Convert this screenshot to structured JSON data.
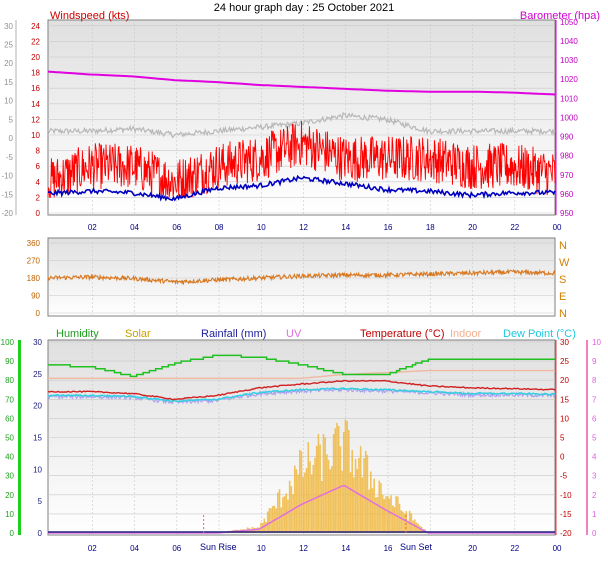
{
  "title": "24 hour graph day : 25 October 2021",
  "panel1": {
    "left_label": "Windspeed (kts)",
    "right_label": "Barometer (hpa)",
    "outer_left_ticks": [
      "30",
      "25",
      "20",
      "15",
      "10",
      "5",
      "0",
      "-5",
      "-10",
      "-15",
      "-20"
    ],
    "left_ticks": [
      "24",
      "22",
      "20",
      "18",
      "16",
      "14",
      "12",
      "10",
      "8",
      "6",
      "4",
      "2",
      "0"
    ],
    "right_ticks": [
      "1050",
      "1040",
      "1030",
      "1020",
      "1010",
      "1000",
      "990",
      "980",
      "970",
      "960",
      "950"
    ]
  },
  "panel2": {
    "left_ticks": [
      "360",
      "270",
      "180",
      "90",
      "0"
    ],
    "right_ticks": [
      "N",
      "W",
      "S",
      "E",
      "N"
    ]
  },
  "panel3": {
    "legend": [
      "Humidity",
      "Solar",
      "Rainfall (mm)",
      "UV",
      "Temperature (°C)",
      "Indoor",
      "Dew Point (°C)"
    ],
    "outer_left_ticks": [
      "100",
      "90",
      "80",
      "70",
      "60",
      "50",
      "40",
      "30",
      "20",
      "10",
      "0"
    ],
    "left_ticks": [
      "30",
      "25",
      "20",
      "15",
      "10",
      "5",
      "0"
    ],
    "right_ticks": [
      "30",
      "25",
      "20",
      "15",
      "10",
      "5",
      "0",
      "-5",
      "-10",
      "-15",
      "-20"
    ],
    "outer_right_ticks": [
      "10",
      "9",
      "8",
      "7",
      "6",
      "5",
      "4",
      "3",
      "2",
      "1",
      "0"
    ],
    "sun_rise": "Sun Rise",
    "sun_set": "Sun Set"
  },
  "x_ticks": [
    "02",
    "04",
    "06",
    "08",
    "10",
    "12",
    "14",
    "16",
    "18",
    "20",
    "22",
    "00"
  ],
  "colors": {
    "windspeed": "#ff0000",
    "avg_wind": "#0000c0",
    "barometer": "#e000e0",
    "gust_grey": "#b8b8b8",
    "direction": "#d87820",
    "humidity": "#20c020",
    "solar": "#f0b840",
    "rainfall": "#202080",
    "uv": "#e070e0",
    "temperature": "#d02020",
    "indoor": "#f0b8a0",
    "dewpoint": "#30d0e0",
    "dewpoint_lilac": "#b0a0f0"
  },
  "chart_data": [
    {
      "type": "line",
      "title": "24 hour graph day : 25 October 2021",
      "x": [
        "00",
        "02",
        "04",
        "06",
        "08",
        "10",
        "12",
        "14",
        "16",
        "18",
        "20",
        "22",
        "00"
      ],
      "series": [
        {
          "name": "Windspeed (kts)",
          "axis": "left",
          "values": [
            4,
            6,
            6,
            4,
            6,
            7,
            9,
            7,
            7,
            7,
            6,
            6,
            5
          ]
        },
        {
          "name": "Barometer (hpa)",
          "axis": "right",
          "values": [
            1024,
            1022.5,
            1021.5,
            1019.5,
            1018.5,
            1017,
            1016,
            1015,
            1014,
            1013.5,
            1013.5,
            1013,
            1012
          ]
        }
      ],
      "avg_wind": [
        2.5,
        2.8,
        2.6,
        1.8,
        3.2,
        3.5,
        4.5,
        3.8,
        3.0,
        2.8,
        2.3,
        2.6,
        2.6
      ],
      "gust_trace": [
        10.5,
        10.5,
        10.8,
        10,
        10.5,
        11,
        11.5,
        12.5,
        12,
        10.5,
        10.5,
        10.5,
        10.5
      ],
      "ylim_left": [
        0,
        24
      ],
      "ylim_right": [
        950,
        1050
      ],
      "xlabel": "",
      "ylabel": "Windspeed (kts)",
      "ylabel_right": "Barometer (hpa)"
    },
    {
      "type": "line",
      "x": [
        "00",
        "02",
        "04",
        "06",
        "08",
        "10",
        "12",
        "14",
        "16",
        "18",
        "20",
        "22",
        "00"
      ],
      "series": [
        {
          "name": "Wind direction",
          "values": [
            180,
            185,
            178,
            160,
            170,
            180,
            190,
            195,
            195,
            200,
            205,
            210,
            205
          ]
        }
      ],
      "ylim": [
        0,
        360
      ],
      "y_tick_labels_right": [
        "N",
        "W",
        "S",
        "E",
        "N"
      ]
    },
    {
      "type": "line",
      "x": [
        "00",
        "02",
        "04",
        "06",
        "08",
        "10",
        "12",
        "14",
        "16",
        "18",
        "20",
        "22",
        "00"
      ],
      "series": [
        {
          "name": "Humidity",
          "axis": "outer_left",
          "values": [
            88,
            87,
            82,
            89,
            93,
            92,
            88,
            83,
            83,
            91,
            91,
            91,
            91
          ]
        },
        {
          "name": "Temperature (°C)",
          "axis": "left",
          "values": [
            17,
            17,
            16.5,
            15,
            16,
            18,
            19,
            19.8,
            19.8,
            18.5,
            18,
            17.8,
            17.5
          ]
        },
        {
          "name": "Indoor",
          "axis": "left",
          "values": [
            20.5,
            20.5,
            20.5,
            20.5,
            20.5,
            20.5,
            20.5,
            21.5,
            22,
            22.5,
            22.5,
            22.5,
            22.5
          ]
        },
        {
          "name": "Dew Point (°C)",
          "axis": "left",
          "values": [
            16,
            16,
            15.8,
            14.5,
            15,
            16.8,
            17.5,
            17.8,
            17.5,
            17,
            16.5,
            16.5,
            16.3
          ]
        },
        {
          "name": "Solar",
          "axis": "left_scaled",
          "values": [
            0,
            0,
            0,
            0,
            0,
            0.2,
            2.2,
            3,
            1.3,
            0,
            0,
            0,
            0
          ]
        },
        {
          "name": "UV",
          "axis": "outer_right",
          "values": [
            0,
            0,
            0,
            0,
            0,
            0.2,
            1.5,
            2.5,
            1.2,
            0,
            0,
            0,
            0
          ]
        },
        {
          "name": "Rainfall (mm)",
          "axis": "left",
          "values": [
            0,
            0,
            0,
            0,
            0,
            0,
            0,
            0,
            0,
            0,
            0,
            0,
            0
          ]
        }
      ],
      "ylim_left": [
        0,
        30
      ],
      "ylim_right": [
        -20,
        30
      ],
      "ylim_outer_left": [
        0,
        100
      ],
      "ylim_outer_right": [
        0,
        10
      ],
      "annotations": [
        "Sun Rise",
        "Sun Set"
      ]
    }
  ]
}
